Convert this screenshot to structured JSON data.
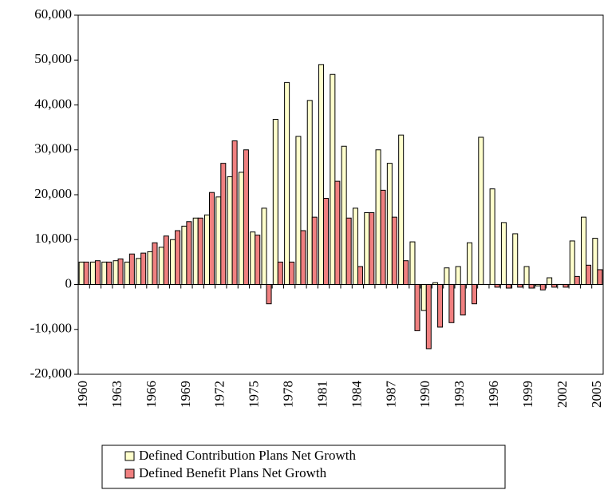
{
  "chart_data": {
    "type": "bar",
    "categories": [
      "1960",
      null,
      null,
      "1963",
      null,
      null,
      "1966",
      null,
      null,
      "1969",
      null,
      null,
      "1972",
      null,
      null,
      "1975",
      null,
      null,
      "1978",
      null,
      null,
      "1981",
      null,
      null,
      "1984",
      null,
      null,
      "1987",
      null,
      null,
      "1990",
      null,
      null,
      "1993",
      null,
      null,
      "1996",
      null,
      null,
      "1999",
      null,
      null,
      "2002",
      null,
      null,
      "2005"
    ],
    "series": [
      {
        "name": "Defined Contribution Plans Net Growth",
        "color": "#ffffcc",
        "values": [
          5000,
          5000,
          5000,
          5300,
          5000,
          5800,
          7300,
          8300,
          10000,
          13000,
          14800,
          15500,
          19500,
          24000,
          25000,
          11700,
          17000,
          36800,
          45000,
          33000,
          41000,
          49000,
          46800,
          30800,
          17000,
          16000,
          30000,
          27000,
          33300,
          9500,
          -5800,
          400,
          3700,
          4000,
          9300,
          32800,
          21300,
          13800,
          11300,
          4000,
          -300,
          1500,
          0,
          9700,
          15000,
          10300
        ]
      },
      {
        "name": "Defined Benefit Plans Net Growth",
        "color": "#f08080",
        "values": [
          5000,
          5300,
          5000,
          5700,
          6800,
          7000,
          9300,
          10800,
          12000,
          14000,
          14800,
          20500,
          27000,
          32000,
          30000,
          11000,
          -4300,
          5000,
          5000,
          12000,
          15000,
          19200,
          23000,
          14800,
          4000,
          16000,
          21000,
          15000,
          5300,
          -10300,
          -14300,
          -9500,
          -8500,
          -6800,
          -4300,
          0,
          -600,
          -800,
          -600,
          -800,
          -1200,
          -600,
          -600,
          1800,
          4300,
          3300
        ]
      }
    ],
    "ylim": [
      -20000,
      60000
    ],
    "yticks": [
      {
        "value": -20000,
        "label": "-20,000"
      },
      {
        "value": -10000,
        "label": "-10,000"
      },
      0,
      {
        "value": 10000,
        "label": "10,000"
      },
      {
        "value": 20000,
        "label": "20,000"
      },
      {
        "value": 30000,
        "label": "30,000"
      },
      {
        "value": 40000,
        "label": "40,000"
      },
      {
        "value": 50000,
        "label": "50,000"
      },
      {
        "value": 60000,
        "label": "60,000"
      }
    ],
    "legend": "bottom"
  }
}
